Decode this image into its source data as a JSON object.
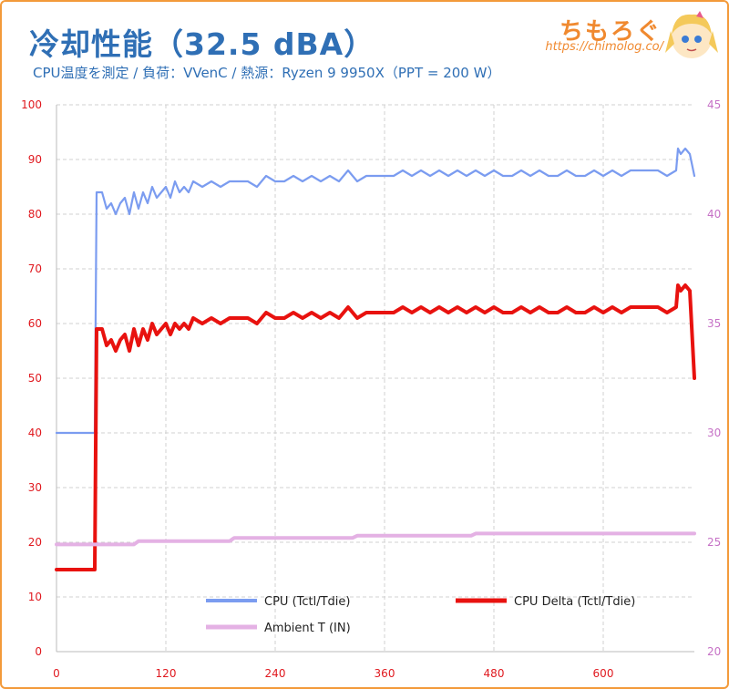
{
  "header": {
    "title": "冷却性能（32.5 dBA）",
    "subtitle": "CPU温度を測定 / 負荷：VVenC / 熱源：Ryzen 9 9950X（PPT = 200 W）",
    "brand": "ちもろぐ",
    "url": "https://chimolog.co/"
  },
  "icons": {
    "mascot": "mascot-character-icon"
  },
  "colors": {
    "cpu": "#7b9cf0",
    "cpu_delta": "#e8120f",
    "ambient": "#e4b1e4",
    "left_axis": "#e0191f",
    "right_axis": "#c671c6",
    "grid": "#cccccc",
    "frame": "#f39a3a"
  },
  "chart_data": {
    "type": "line",
    "title": "冷却性能（32.5 dBA）",
    "subtitle": "CPU温度を測定 / 負荷：VVenC / 熱源：Ryzen 9 9950X（PPT = 200 W）",
    "xlabel": "",
    "ylabel": "",
    "xlim": [
      0,
      700
    ],
    "ylim": [
      0,
      100
    ],
    "y2lim": [
      20,
      45
    ],
    "x_ticks": [
      0,
      120,
      240,
      360,
      480,
      600
    ],
    "y_ticks": [
      0,
      10,
      20,
      30,
      40,
      50,
      60,
      70,
      80,
      90,
      100
    ],
    "y2_ticks": [
      20,
      25,
      30,
      35,
      40,
      45
    ],
    "grid": true,
    "legend_position": "bottom-center",
    "series": [
      {
        "name": "CPU (Tctl/Tdie)",
        "axis": "left",
        "x": [
          0,
          10,
          20,
          30,
          40,
          42,
          44,
          46,
          50,
          55,
          60,
          65,
          70,
          75,
          80,
          85,
          90,
          95,
          100,
          105,
          110,
          115,
          120,
          125,
          130,
          135,
          140,
          145,
          150,
          160,
          170,
          180,
          190,
          200,
          210,
          220,
          230,
          240,
          250,
          260,
          270,
          280,
          290,
          300,
          310,
          320,
          330,
          340,
          350,
          360,
          370,
          380,
          390,
          400,
          410,
          420,
          430,
          440,
          450,
          460,
          470,
          480,
          490,
          500,
          510,
          520,
          530,
          540,
          550,
          560,
          570,
          580,
          590,
          600,
          610,
          620,
          630,
          640,
          650,
          660,
          670,
          680,
          682,
          685,
          690,
          695,
          700
        ],
        "values": [
          40,
          40,
          40,
          40,
          40,
          40,
          84,
          84,
          84,
          81,
          82,
          80,
          82,
          83,
          80,
          84,
          81,
          84,
          82,
          85,
          83,
          84,
          85,
          83,
          86,
          84,
          85,
          84,
          86,
          85,
          86,
          85,
          86,
          86,
          86,
          85,
          87,
          86,
          86,
          87,
          86,
          87,
          86,
          87,
          86,
          88,
          86,
          87,
          87,
          87,
          87,
          88,
          87,
          88,
          87,
          88,
          87,
          88,
          87,
          88,
          87,
          88,
          87,
          87,
          88,
          87,
          88,
          87,
          87,
          88,
          87,
          87,
          88,
          87,
          88,
          87,
          88,
          88,
          88,
          88,
          87,
          88,
          92,
          91,
          92,
          91,
          87
        ]
      },
      {
        "name": "CPU Delta (Tctl/Tdie)",
        "axis": "left",
        "x": [
          0,
          10,
          20,
          30,
          40,
          42,
          44,
          46,
          50,
          55,
          60,
          65,
          70,
          75,
          80,
          85,
          90,
          95,
          100,
          105,
          110,
          115,
          120,
          125,
          130,
          135,
          140,
          145,
          150,
          160,
          170,
          180,
          190,
          200,
          210,
          220,
          230,
          240,
          250,
          260,
          270,
          280,
          290,
          300,
          310,
          320,
          330,
          340,
          350,
          360,
          370,
          380,
          390,
          400,
          410,
          420,
          430,
          440,
          450,
          460,
          470,
          480,
          490,
          500,
          510,
          520,
          530,
          540,
          550,
          560,
          570,
          580,
          590,
          600,
          610,
          620,
          630,
          640,
          650,
          660,
          670,
          680,
          682,
          685,
          690,
          695,
          700
        ],
        "values": [
          15,
          15,
          15,
          15,
          15,
          15,
          59,
          59,
          59,
          56,
          57,
          55,
          57,
          58,
          55,
          59,
          56,
          59,
          57,
          60,
          58,
          59,
          60,
          58,
          60,
          59,
          60,
          59,
          61,
          60,
          61,
          60,
          61,
          61,
          61,
          60,
          62,
          61,
          61,
          62,
          61,
          62,
          61,
          62,
          61,
          63,
          61,
          62,
          62,
          62,
          62,
          63,
          62,
          63,
          62,
          63,
          62,
          63,
          62,
          63,
          62,
          63,
          62,
          62,
          63,
          62,
          63,
          62,
          62,
          63,
          62,
          62,
          63,
          62,
          63,
          62,
          63,
          63,
          63,
          63,
          62,
          63,
          67,
          66,
          67,
          66,
          50
        ]
      },
      {
        "name": "Ambient T (IN)",
        "axis": "right",
        "x": [
          0,
          85,
          90,
          190,
          195,
          325,
          330,
          455,
          460,
          700
        ],
        "values": [
          24.9,
          24.9,
          25.05,
          25.05,
          25.2,
          25.2,
          25.3,
          25.3,
          25.4,
          25.4
        ]
      }
    ]
  }
}
